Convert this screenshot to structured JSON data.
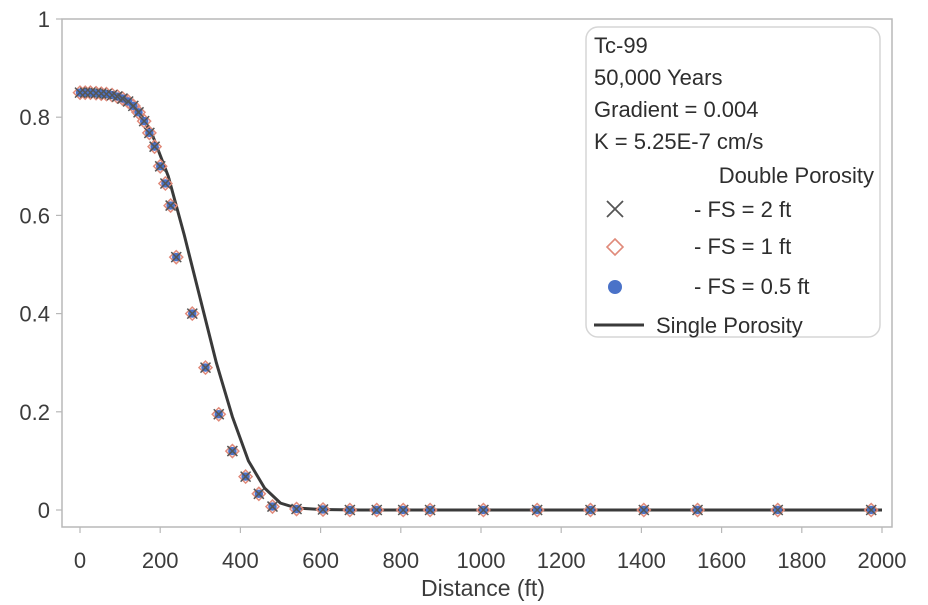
{
  "chart_data": {
    "type": "scatter",
    "xlabel": "Distance (ft)",
    "ylabel": "",
    "xlim": [
      0,
      2000
    ],
    "ylim": [
      0,
      1
    ],
    "x_ticks": [
      "0",
      "200",
      "400",
      "600",
      "800",
      "1000",
      "1200",
      "1400",
      "1600",
      "1800",
      "2000"
    ],
    "y_ticks": [
      "0",
      "0.2",
      "0.4",
      "0.6",
      "0.8",
      "1"
    ],
    "legend": {
      "placement": "top-right",
      "lines": [
        "Tc-99",
        "50,000 Years",
        "Gradient = 0.004",
        "K = 5.25E-7 cm/s",
        "Double Porosity"
      ],
      "entries": [
        "- FS = 2 ft",
        "- FS = 1 ft",
        "- FS = 0.5 ft",
        "Single Porosity"
      ]
    },
    "series": [
      {
        "name": "Double Porosity - FS = 2 ft",
        "marker": "x",
        "color": "#555555",
        "x": [
          0,
          13,
          26,
          40,
          53,
          66,
          80,
          93,
          106,
          120,
          133,
          146,
          160,
          173,
          186,
          200,
          213,
          226,
          240,
          280,
          313,
          346,
          380,
          413,
          446,
          480,
          540,
          606,
          673,
          740,
          806,
          873,
          1006,
          1140,
          1273,
          1406,
          1540,
          1740,
          1973
        ],
        "y": [
          0.85,
          0.85,
          0.85,
          0.849,
          0.848,
          0.847,
          0.845,
          0.842,
          0.838,
          0.832,
          0.823,
          0.81,
          0.792,
          0.768,
          0.74,
          0.7,
          0.665,
          0.62,
          0.515,
          0.4,
          0.29,
          0.195,
          0.12,
          0.068,
          0.033,
          0.007,
          0.002,
          0.001,
          0,
          0,
          0,
          0,
          0,
          0,
          0,
          0,
          0,
          0,
          0
        ]
      },
      {
        "name": "Double Porosity - FS = 1 ft",
        "marker": "diamond",
        "color": "#e08a7a",
        "x": [
          0,
          13,
          26,
          40,
          53,
          66,
          80,
          93,
          106,
          120,
          133,
          146,
          160,
          173,
          186,
          200,
          213,
          226,
          240,
          280,
          313,
          346,
          380,
          413,
          446,
          480,
          540,
          606,
          673,
          740,
          806,
          873,
          1006,
          1140,
          1273,
          1406,
          1540,
          1740,
          1973
        ],
        "y": [
          0.85,
          0.85,
          0.85,
          0.849,
          0.848,
          0.847,
          0.845,
          0.842,
          0.838,
          0.832,
          0.823,
          0.81,
          0.792,
          0.768,
          0.74,
          0.7,
          0.665,
          0.62,
          0.515,
          0.4,
          0.29,
          0.195,
          0.12,
          0.068,
          0.033,
          0.007,
          0.002,
          0.001,
          0,
          0,
          0,
          0,
          0,
          0,
          0,
          0,
          0,
          0,
          0
        ]
      },
      {
        "name": "Double Porosity - FS = 0.5 ft",
        "marker": "circle",
        "color": "#4a72c8",
        "x": [
          0,
          13,
          26,
          40,
          53,
          66,
          80,
          93,
          106,
          120,
          133,
          146,
          160,
          173,
          186,
          200,
          213,
          226,
          240,
          280,
          313,
          346,
          380,
          413,
          446,
          480,
          540,
          606,
          673,
          740,
          806,
          873,
          1006,
          1140,
          1273,
          1406,
          1540,
          1740,
          1973
        ],
        "y": [
          0.85,
          0.85,
          0.85,
          0.849,
          0.848,
          0.847,
          0.845,
          0.842,
          0.838,
          0.832,
          0.823,
          0.81,
          0.792,
          0.768,
          0.74,
          0.7,
          0.665,
          0.62,
          0.515,
          0.4,
          0.29,
          0.195,
          0.12,
          0.068,
          0.033,
          0.007,
          0.002,
          0.001,
          0,
          0,
          0,
          0,
          0,
          0,
          0,
          0,
          0,
          0,
          0
        ]
      },
      {
        "name": "Single Porosity",
        "marker": "line",
        "color": "#3a3a3a",
        "x": [
          0,
          50,
          100,
          140,
          180,
          220,
          260,
          300,
          340,
          380,
          420,
          460,
          500,
          540,
          600,
          700,
          1000,
          1500,
          2000
        ],
        "y": [
          0.85,
          0.848,
          0.838,
          0.818,
          0.765,
          0.68,
          0.56,
          0.43,
          0.3,
          0.19,
          0.1,
          0.045,
          0.014,
          0.004,
          0.001,
          0,
          0,
          0,
          0
        ]
      }
    ]
  }
}
